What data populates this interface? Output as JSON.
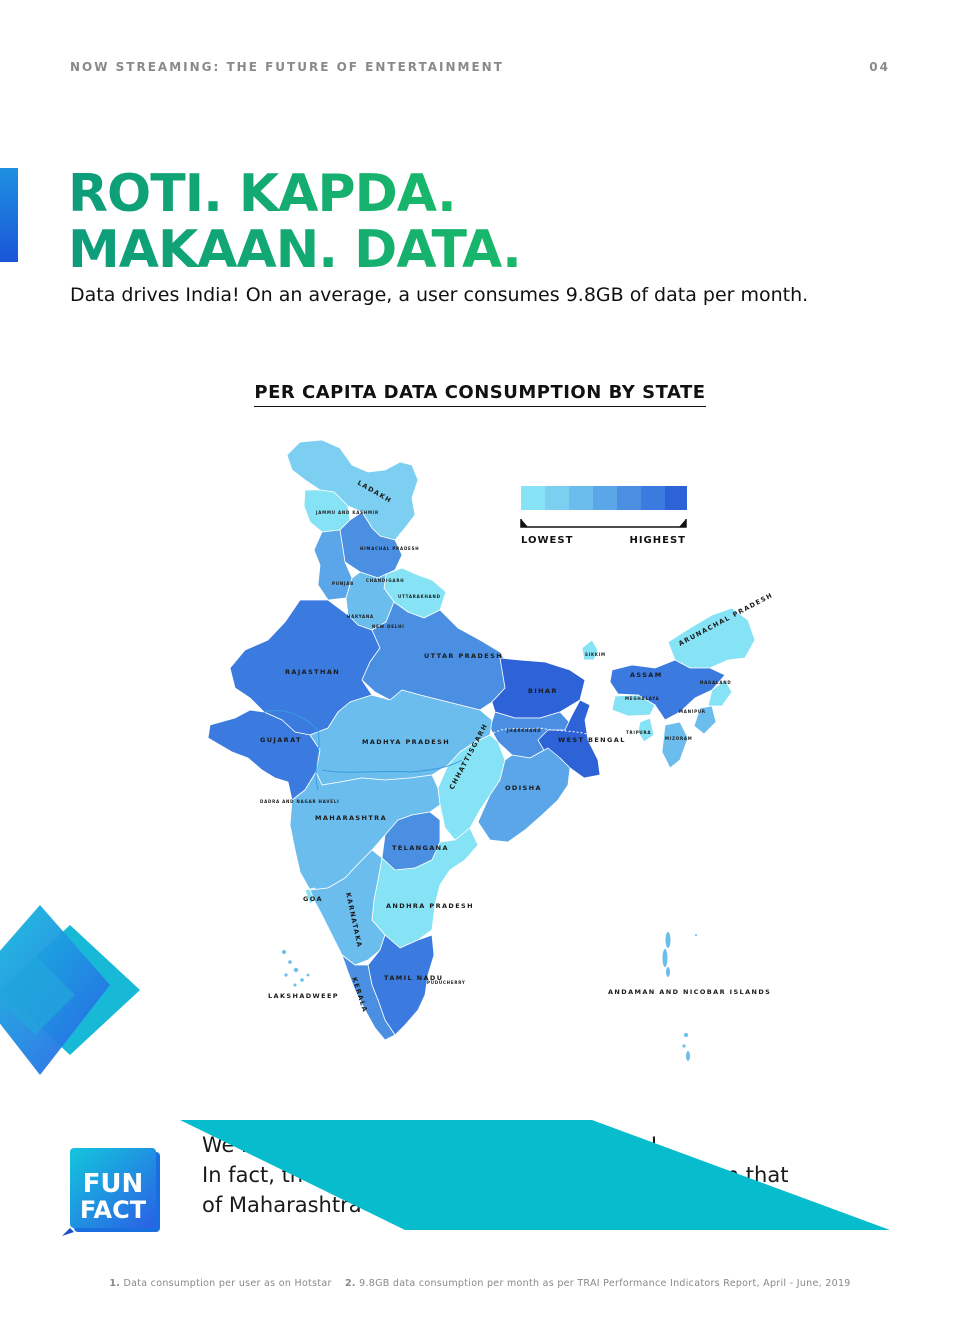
{
  "header": {
    "left": "NOW STREAMING: THE FUTURE OF ENTERTAINMENT",
    "right": "04"
  },
  "title": {
    "line1": "ROTI. KAPDA.",
    "line2": "MAKAAN. DATA."
  },
  "subtitle": "Data drives India! On an average, a user consumes 9.8GB of data per month.",
  "map": {
    "title": "PER CAPITA DATA CONSUMPTION BY STATE",
    "legend": {
      "low": "LOWEST",
      "high": "HIGHEST",
      "colors": [
        "#86e3f5",
        "#7dcff1",
        "#6bbdee",
        "#5aa6e8",
        "#4a8fe2",
        "#3b7ade",
        "#2e63d8"
      ]
    },
    "states": {
      "ladakh": "LADAKH",
      "jk": "JAMMU AND KASHMIR",
      "himachal": "HIMACHAL PRADESH",
      "punjab": "PUNJAB",
      "chandigarh": "CHANDIGARH",
      "uttarakhand": "UTTARAKHAND",
      "haryana": "HARYANA",
      "delhi": "NEW DELHI",
      "rajasthan": "RAJASTHAN",
      "up": "UTTAR PRADESH",
      "bihar": "BIHAR",
      "sikkim": "SIKKIM",
      "arunachal": "ARUNACHAL PRADESH",
      "assam": "ASSAM",
      "nagaland": "NAGALAND",
      "meghalaya": "MEGHALAYA",
      "manipur": "MANIPUR",
      "tripura": "TRIPURA",
      "mizoram": "MIZORAM",
      "jharkhand": "JHARKHAND",
      "wb": "WEST BENGAL",
      "gujarat": "GUJARAT",
      "mp": "MADHYA PRADESH",
      "chhattisgarh": "CHHATTISGARH",
      "odisha": "ODISHA",
      "dnh": "DADRA AND NAGAR HAVELI",
      "maharashtra": "MAHARASHTRA",
      "telangana": "TELANGANA",
      "goa": "GOA",
      "karnataka": "KARNATAKA",
      "ap": "ANDHRA PRADESH",
      "tamilnadu": "TAMIL NADU",
      "puducherry": "PUDUCHERRY",
      "kerala": "KERALA",
      "lakshadweep": "LAKSHADWEEP",
      "andaman": "ANDAMAN AND NICOBAR ISLANDS"
    }
  },
  "funfact": {
    "badge_line1": "FUN",
    "badge_line2": "FACT",
    "line1": "We have states and cities that run on data!",
    "line2": "In fact, the data consumption in Bihar is more than that",
    "line3": "of Maharashtra and Karnataka."
  },
  "footer": {
    "n1": "1.",
    "note1": "Data consumption per user as on Hotstar",
    "n2": "2.",
    "note2": "9.8GB data consumption per month as per TRAI Performance Indicators Report, April - June, 2019"
  }
}
